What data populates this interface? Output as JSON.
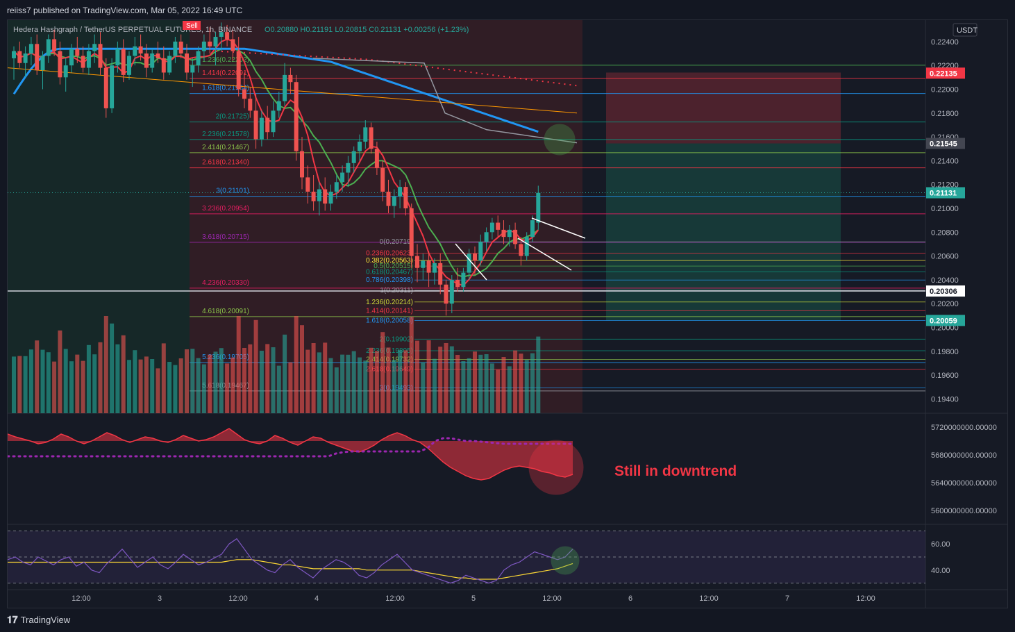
{
  "header": {
    "published_by": "reiiss7 published on TradingView.com, Mar 05, 2022 16:49 UTC"
  },
  "footer": {
    "brand": "TradingView",
    "brand_icon": "tradingview-logo-icon"
  },
  "chart_data": [
    {
      "type": "candlestick",
      "title": "Hedera Hashgraph / TetherUS PERPETUAL FUTURES, 1h, BINANCE",
      "ohlc_label": "O0.20880 H0.21191 L0.20815 C0.21131 +0.00256 (+1.23%)",
      "sell_label": "Sell",
      "currency": "USDT",
      "x_tick_labels": [
        "12:00",
        "3",
        "12:00",
        "4",
        "12:00",
        "5",
        "12:00",
        "6",
        "12:00",
        "7",
        "12:00"
      ],
      "y_ticks": [
        0.194,
        0.196,
        0.198,
        0.2,
        0.202,
        0.204,
        0.206,
        0.208,
        0.21,
        0.212,
        0.214,
        0.216,
        0.218,
        0.22,
        0.222,
        0.224
      ],
      "ylim": [
        0.1928,
        0.2258
      ],
      "price_tags": [
        {
          "value": "0.22135",
          "color": "#f23645",
          "text_color": "#ffffff",
          "y": 0.22135
        },
        {
          "value": "0.21545",
          "color": "#434651",
          "text_color": "#ffffff",
          "y": 0.21545
        },
        {
          "value": "0.21131",
          "color": "#26a69a",
          "text_color": "#ffffff",
          "y": 0.21131
        },
        {
          "value": "0.20306",
          "color": "#ffffff",
          "text_color": "#131722",
          "y": 0.20306
        },
        {
          "value": "0.20059",
          "color": "#26a69a",
          "text_color": "#ffffff",
          "y": 0.20059
        }
      ],
      "fib_levels_1": [
        {
          "label": "1.236(0.22202)",
          "y": 0.22202,
          "color": "#4caf50"
        },
        {
          "label": "1.414(0.22091)",
          "y": 0.22091,
          "color": "#f23645"
        },
        {
          "label": "1.618(0.21964)",
          "y": 0.21964,
          "color": "#2196f3"
        },
        {
          "label": "2(0.21725)",
          "y": 0.21725,
          "color": "#089981"
        },
        {
          "label": "2.236(0.21578)",
          "y": 0.21578,
          "color": "#089981"
        },
        {
          "label": "2.414(0.21467)",
          "y": 0.21467,
          "color": "#8bc34a"
        },
        {
          "label": "2.618(0.21340)",
          "y": 0.2134,
          "color": "#f23645"
        },
        {
          "label": "3(0.21101)",
          "y": 0.21101,
          "color": "#2196f3"
        },
        {
          "label": "3.236(0.20954)",
          "y": 0.20954,
          "color": "#e91e63"
        },
        {
          "label": "3.618(0.20715)",
          "y": 0.20715,
          "color": "#9c27b0"
        },
        {
          "label": "4.236(0.20330)",
          "y": 0.2033,
          "color": "#e91e63"
        },
        {
          "label": "4.618(0.20091)",
          "y": 0.20091,
          "color": "#8bc34a"
        },
        {
          "label": "5.236(0.19705)",
          "y": 0.19705,
          "color": "#2196f3"
        },
        {
          "label": "5.618(0.19467)",
          "y": 0.19467,
          "color": "#9598a1"
        }
      ],
      "fib_levels_2": [
        {
          "label": "0(0.20719)",
          "y": 0.20719,
          "color": "#9598a1"
        },
        {
          "label": "0.236(0.20623)",
          "y": 0.20623,
          "color": "#f23645"
        },
        {
          "label": "0.382(0.20563)",
          "y": 0.20563,
          "color": "#ffeb3b"
        },
        {
          "label": "0.5(0.20515)",
          "y": 0.20515,
          "color": "#4caf50"
        },
        {
          "label": "0.618(0.20467)",
          "y": 0.20467,
          "color": "#089981"
        },
        {
          "label": "0.786(0.20398)",
          "y": 0.20398,
          "color": "#2196f3"
        },
        {
          "label": "1(0.20311)",
          "y": 0.20311,
          "color": "#9598a1"
        },
        {
          "label": "1.236(0.20214)",
          "y": 0.20214,
          "color": "#cddc39"
        },
        {
          "label": "1.414(0.20141)",
          "y": 0.20141,
          "color": "#f23645"
        },
        {
          "label": "1.618(0.20058)",
          "y": 0.20058,
          "color": "#2196f3"
        },
        {
          "label": "2(0.19902)",
          "y": 0.19902,
          "color": "#089981"
        },
        {
          "label": "2.236(0.19805)",
          "y": 0.19805,
          "color": "#089981"
        },
        {
          "label": "2.414(0.19732)",
          "y": 0.19732,
          "color": "#8bc34a"
        },
        {
          "label": "2.618(0.19649)",
          "y": 0.19649,
          "color": "#f23645"
        },
        {
          "label": "3(0.19493)",
          "y": 0.19493,
          "color": "#2196f3"
        }
      ],
      "candles": [
        {
          "o": 0.2226,
          "h": 0.2236,
          "l": 0.2208,
          "c": 0.2232
        },
        {
          "o": 0.2232,
          "h": 0.224,
          "l": 0.2218,
          "c": 0.2222
        },
        {
          "o": 0.2222,
          "h": 0.2236,
          "l": 0.221,
          "c": 0.223
        },
        {
          "o": 0.223,
          "h": 0.2244,
          "l": 0.222,
          "c": 0.2238
        },
        {
          "o": 0.2238,
          "h": 0.2246,
          "l": 0.2212,
          "c": 0.2216
        },
        {
          "o": 0.2216,
          "h": 0.2232,
          "l": 0.22,
          "c": 0.2228
        },
        {
          "o": 0.2228,
          "h": 0.2246,
          "l": 0.2222,
          "c": 0.2242
        },
        {
          "o": 0.2242,
          "h": 0.225,
          "l": 0.2228,
          "c": 0.2232
        },
        {
          "o": 0.2232,
          "h": 0.224,
          "l": 0.2204,
          "c": 0.221
        },
        {
          "o": 0.221,
          "h": 0.2226,
          "l": 0.2198,
          "c": 0.222
        },
        {
          "o": 0.222,
          "h": 0.2238,
          "l": 0.2214,
          "c": 0.2234
        },
        {
          "o": 0.2234,
          "h": 0.2244,
          "l": 0.2222,
          "c": 0.2228
        },
        {
          "o": 0.2228,
          "h": 0.2236,
          "l": 0.2214,
          "c": 0.2218
        },
        {
          "o": 0.2218,
          "h": 0.2238,
          "l": 0.2212,
          "c": 0.2232
        },
        {
          "o": 0.2232,
          "h": 0.2246,
          "l": 0.2222,
          "c": 0.2238
        },
        {
          "o": 0.2238,
          "h": 0.2248,
          "l": 0.2212,
          "c": 0.2218
        },
        {
          "o": 0.2218,
          "h": 0.2226,
          "l": 0.2176,
          "c": 0.2184
        },
        {
          "o": 0.2184,
          "h": 0.2226,
          "l": 0.218,
          "c": 0.222
        },
        {
          "o": 0.222,
          "h": 0.224,
          "l": 0.2214,
          "c": 0.2234
        },
        {
          "o": 0.2234,
          "h": 0.2242,
          "l": 0.2206,
          "c": 0.2212
        },
        {
          "o": 0.2212,
          "h": 0.2232,
          "l": 0.2208,
          "c": 0.2228
        },
        {
          "o": 0.2228,
          "h": 0.2244,
          "l": 0.222,
          "c": 0.2236
        },
        {
          "o": 0.2236,
          "h": 0.2246,
          "l": 0.2224,
          "c": 0.223
        },
        {
          "o": 0.223,
          "h": 0.2238,
          "l": 0.221,
          "c": 0.2218
        },
        {
          "o": 0.2218,
          "h": 0.2234,
          "l": 0.2214,
          "c": 0.223
        },
        {
          "o": 0.223,
          "h": 0.224,
          "l": 0.2222,
          "c": 0.2226
        },
        {
          "o": 0.2226,
          "h": 0.2236,
          "l": 0.2208,
          "c": 0.2214
        },
        {
          "o": 0.2214,
          "h": 0.2232,
          "l": 0.2212,
          "c": 0.2228
        },
        {
          "o": 0.2228,
          "h": 0.2244,
          "l": 0.2222,
          "c": 0.224
        },
        {
          "o": 0.224,
          "h": 0.2246,
          "l": 0.2226,
          "c": 0.223
        },
        {
          "o": 0.223,
          "h": 0.2238,
          "l": 0.2208,
          "c": 0.2214
        },
        {
          "o": 0.2214,
          "h": 0.2226,
          "l": 0.2202,
          "c": 0.222
        },
        {
          "o": 0.222,
          "h": 0.2236,
          "l": 0.2214,
          "c": 0.2232
        },
        {
          "o": 0.2232,
          "h": 0.2246,
          "l": 0.2224,
          "c": 0.224
        },
        {
          "o": 0.224,
          "h": 0.2252,
          "l": 0.223,
          "c": 0.2236
        },
        {
          "o": 0.2236,
          "h": 0.2248,
          "l": 0.222,
          "c": 0.2244
        },
        {
          "o": 0.2244,
          "h": 0.2256,
          "l": 0.2232,
          "c": 0.2248
        },
        {
          "o": 0.2248,
          "h": 0.2254,
          "l": 0.2236,
          "c": 0.2242
        },
        {
          "o": 0.2242,
          "h": 0.225,
          "l": 0.2224,
          "c": 0.2232
        },
        {
          "o": 0.2232,
          "h": 0.2244,
          "l": 0.2194,
          "c": 0.22
        },
        {
          "o": 0.22,
          "h": 0.2214,
          "l": 0.2184,
          "c": 0.2192
        },
        {
          "o": 0.2192,
          "h": 0.2202,
          "l": 0.2176,
          "c": 0.2182
        },
        {
          "o": 0.2182,
          "h": 0.2196,
          "l": 0.215,
          "c": 0.2158
        },
        {
          "o": 0.2158,
          "h": 0.2182,
          "l": 0.2152,
          "c": 0.2176
        },
        {
          "o": 0.2176,
          "h": 0.2186,
          "l": 0.2158,
          "c": 0.2164
        },
        {
          "o": 0.2164,
          "h": 0.219,
          "l": 0.216,
          "c": 0.2182
        },
        {
          "o": 0.2182,
          "h": 0.2198,
          "l": 0.2176,
          "c": 0.219
        },
        {
          "o": 0.219,
          "h": 0.2222,
          "l": 0.2186,
          "c": 0.2212
        },
        {
          "o": 0.2212,
          "h": 0.2218,
          "l": 0.2196,
          "c": 0.2206
        },
        {
          "o": 0.2206,
          "h": 0.2212,
          "l": 0.214,
          "c": 0.2148
        },
        {
          "o": 0.2148,
          "h": 0.216,
          "l": 0.2116,
          "c": 0.2126
        },
        {
          "o": 0.2126,
          "h": 0.2136,
          "l": 0.2104,
          "c": 0.2114
        },
        {
          "o": 0.2114,
          "h": 0.2128,
          "l": 0.2098,
          "c": 0.2106
        },
        {
          "o": 0.2106,
          "h": 0.2122,
          "l": 0.2094,
          "c": 0.2116
        },
        {
          "o": 0.2116,
          "h": 0.2126,
          "l": 0.2098,
          "c": 0.2104
        },
        {
          "o": 0.2104,
          "h": 0.212,
          "l": 0.2098,
          "c": 0.2114
        },
        {
          "o": 0.2114,
          "h": 0.2128,
          "l": 0.2108,
          "c": 0.2122
        },
        {
          "o": 0.2122,
          "h": 0.2136,
          "l": 0.2114,
          "c": 0.213
        },
        {
          "o": 0.213,
          "h": 0.2144,
          "l": 0.2118,
          "c": 0.2138
        },
        {
          "o": 0.2138,
          "h": 0.2152,
          "l": 0.213,
          "c": 0.2148
        },
        {
          "o": 0.2148,
          "h": 0.2162,
          "l": 0.214,
          "c": 0.2156
        },
        {
          "o": 0.2156,
          "h": 0.2174,
          "l": 0.215,
          "c": 0.2168
        },
        {
          "o": 0.2168,
          "h": 0.2172,
          "l": 0.2146,
          "c": 0.215
        },
        {
          "o": 0.215,
          "h": 0.2156,
          "l": 0.2128,
          "c": 0.2134
        },
        {
          "o": 0.2134,
          "h": 0.214,
          "l": 0.2106,
          "c": 0.2114
        },
        {
          "o": 0.2114,
          "h": 0.2124,
          "l": 0.2096,
          "c": 0.2102
        },
        {
          "o": 0.2102,
          "h": 0.2116,
          "l": 0.2092,
          "c": 0.211
        },
        {
          "o": 0.211,
          "h": 0.2124,
          "l": 0.21,
          "c": 0.2118
        },
        {
          "o": 0.2118,
          "h": 0.2122,
          "l": 0.2094,
          "c": 0.21
        },
        {
          "o": 0.21,
          "h": 0.2104,
          "l": 0.205,
          "c": 0.206
        },
        {
          "o": 0.206,
          "h": 0.207,
          "l": 0.2038,
          "c": 0.205
        },
        {
          "o": 0.205,
          "h": 0.2062,
          "l": 0.204,
          "c": 0.2056
        },
        {
          "o": 0.2056,
          "h": 0.2064,
          "l": 0.2034,
          "c": 0.2046
        },
        {
          "o": 0.2046,
          "h": 0.2058,
          "l": 0.2036,
          "c": 0.2054
        },
        {
          "o": 0.2054,
          "h": 0.2062,
          "l": 0.2028,
          "c": 0.2036
        },
        {
          "o": 0.2036,
          "h": 0.204,
          "l": 0.201,
          "c": 0.202
        },
        {
          "o": 0.202,
          "h": 0.2044,
          "l": 0.2012,
          "c": 0.204
        },
        {
          "o": 0.204,
          "h": 0.205,
          "l": 0.203,
          "c": 0.2034
        },
        {
          "o": 0.2034,
          "h": 0.205,
          "l": 0.203,
          "c": 0.2046
        },
        {
          "o": 0.2046,
          "h": 0.2066,
          "l": 0.204,
          "c": 0.2062
        },
        {
          "o": 0.2062,
          "h": 0.2068,
          "l": 0.2044,
          "c": 0.2056
        },
        {
          "o": 0.2056,
          "h": 0.2078,
          "l": 0.2052,
          "c": 0.2072
        },
        {
          "o": 0.2072,
          "h": 0.2084,
          "l": 0.2064,
          "c": 0.208
        },
        {
          "o": 0.208,
          "h": 0.2092,
          "l": 0.2074,
          "c": 0.2088
        },
        {
          "o": 0.2088,
          "h": 0.2094,
          "l": 0.2076,
          "c": 0.2082
        },
        {
          "o": 0.2082,
          "h": 0.209,
          "l": 0.207,
          "c": 0.2076
        },
        {
          "o": 0.2076,
          "h": 0.2086,
          "l": 0.2068,
          "c": 0.2082
        },
        {
          "o": 0.2082,
          "h": 0.2088,
          "l": 0.2066,
          "c": 0.207
        },
        {
          "o": 0.207,
          "h": 0.2076,
          "l": 0.2052,
          "c": 0.206
        },
        {
          "o": 0.206,
          "h": 0.208,
          "l": 0.2056,
          "c": 0.2076
        },
        {
          "o": 0.2076,
          "h": 0.2094,
          "l": 0.2072,
          "c": 0.209
        },
        {
          "o": 0.2088,
          "h": 0.2119,
          "l": 0.2082,
          "c": 0.2113
        }
      ],
      "volume_up_color": "#26a69a",
      "volume_down_color": "#ef5350"
    },
    {
      "type": "area",
      "series_name": "",
      "y_ticks": [
        "5720000000.00000",
        "5680000000.00000",
        "5640000000.00000",
        "5600000000.00000"
      ],
      "ylim": [
        5580000000,
        5740000000
      ],
      "annotation": "Still in downtrend",
      "annotation_color": "#f23645",
      "values": [
        5710,
        5706,
        5703,
        5700,
        5696,
        5698,
        5703,
        5710,
        5706,
        5700,
        5696,
        5700,
        5706,
        5712,
        5708,
        5702,
        5698,
        5702,
        5706,
        5704,
        5700,
        5698,
        5702,
        5708,
        5704,
        5700,
        5702,
        5706,
        5712,
        5718,
        5710,
        5702,
        5698,
        5696,
        5700,
        5708,
        5704,
        5698,
        5694,
        5700,
        5706,
        5704,
        5698,
        5694,
        5690,
        5686,
        5684,
        5688,
        5694,
        5702,
        5708,
        5712,
        5708,
        5702,
        5698,
        5690,
        5680,
        5670,
        5662,
        5656,
        5650,
        5646,
        5644,
        5646,
        5652,
        5658,
        5662,
        5664,
        5662,
        5660,
        5656,
        5654,
        5650,
        5648,
        5652
      ],
      "signal": [
        5678,
        5678,
        5678,
        5678,
        5678,
        5678,
        5678,
        5678,
        5678,
        5678,
        5678,
        5678,
        5678,
        5678,
        5678,
        5678,
        5678,
        5678,
        5678,
        5678,
        5678,
        5678,
        5678,
        5678,
        5678,
        5678,
        5678,
        5678,
        5678,
        5678,
        5678,
        5678,
        5678,
        5678,
        5678,
        5678,
        5678,
        5678,
        5678,
        5678,
        5678,
        5678,
        5678,
        5682,
        5684,
        5685,
        5685,
        5685,
        5685,
        5685,
        5685,
        5685,
        5685,
        5685,
        5685,
        5690,
        5700,
        5704,
        5704,
        5702,
        5700,
        5700,
        5699,
        5698,
        5697,
        5696,
        5696,
        5696,
        5696,
        5696,
        5696,
        5696,
        5696,
        5696,
        5696
      ]
    },
    {
      "type": "line",
      "series_name": "",
      "y_ticks": [
        "60.00",
        "40.00"
      ],
      "ylim": [
        25,
        75
      ],
      "bands": [
        30,
        50,
        70
      ],
      "values": [
        48,
        50,
        46,
        44,
        50,
        47,
        44,
        48,
        50,
        43,
        46,
        40,
        38,
        45,
        50,
        56,
        49,
        42,
        46,
        50,
        44,
        41,
        46,
        52,
        48,
        44,
        46,
        49,
        52,
        60,
        64,
        56,
        48,
        44,
        40,
        38,
        44,
        48,
        42,
        38,
        34,
        40,
        44,
        48,
        46,
        42,
        36,
        34,
        38,
        44,
        48,
        52,
        46,
        40,
        38,
        36,
        34,
        32,
        30,
        32,
        36,
        34,
        32,
        30,
        32,
        40,
        44,
        46,
        50,
        54,
        52,
        50,
        48,
        50,
        56
      ],
      "signal": [
        46,
        46,
        46,
        46,
        46,
        46,
        46,
        46,
        46,
        46,
        46,
        46,
        46,
        46,
        46,
        46,
        46,
        46,
        46,
        46,
        46,
        46,
        46,
        46,
        46,
        46,
        46,
        46,
        46,
        47,
        48,
        48,
        48,
        47,
        46,
        45,
        44,
        44,
        43,
        42,
        41,
        41,
        41,
        41,
        41,
        41,
        41,
        40,
        40,
        40,
        40,
        40,
        40,
        40,
        39,
        38,
        37,
        36,
        35,
        34,
        34,
        33,
        33,
        33,
        33,
        34,
        35,
        36,
        37,
        38,
        39,
        40,
        41,
        43,
        45
      ]
    }
  ]
}
